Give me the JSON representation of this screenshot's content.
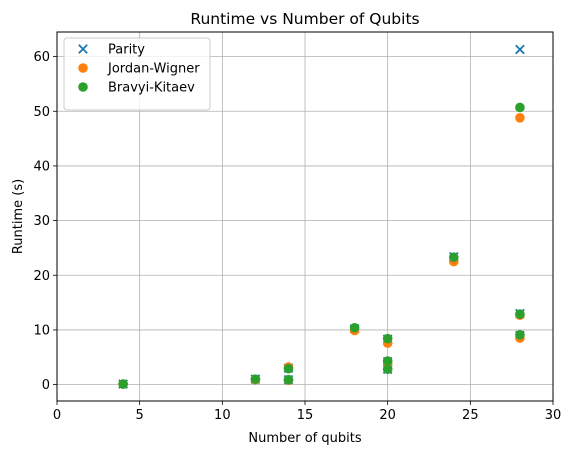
{
  "chart_data": {
    "type": "scatter",
    "title": "Runtime vs Number of Qubits",
    "xlabel": "Number of qubits",
    "ylabel": "Runtime (s)",
    "xlim": [
      0,
      30
    ],
    "ylim": [
      -3,
      64.5
    ],
    "xticks": [
      0,
      5,
      10,
      15,
      20,
      25,
      30
    ],
    "yticks": [
      0,
      10,
      20,
      30,
      40,
      50,
      60
    ],
    "grid": true,
    "legend_position": "top-left",
    "series": [
      {
        "name": "Parity",
        "marker": "x",
        "color": "#1f77b4",
        "x": [
          4,
          12,
          14,
          14,
          18,
          20,
          20,
          20,
          24,
          28,
          28,
          28
        ],
        "y": [
          0.1,
          1.0,
          0.9,
          3.0,
          10.2,
          8.3,
          4.2,
          2.8,
          23.4,
          61.3,
          13.0,
          9.0
        ]
      },
      {
        "name": "Jordan-Wigner",
        "marker": "o",
        "color": "#ff7f0e",
        "x": [
          4,
          12,
          14,
          14,
          18,
          20,
          20,
          20,
          24,
          28,
          28,
          28
        ],
        "y": [
          0.1,
          0.9,
          0.8,
          3.2,
          9.9,
          7.6,
          3.9,
          2.9,
          22.5,
          48.8,
          12.7,
          8.5
        ]
      },
      {
        "name": "Bravyi-Kitaev",
        "marker": "o",
        "color": "#2ca02c",
        "x": [
          4,
          12,
          14,
          14,
          18,
          20,
          20,
          20,
          24,
          28,
          28,
          28
        ],
        "y": [
          0.1,
          1.0,
          0.9,
          2.9,
          10.4,
          8.4,
          4.3,
          2.8,
          23.3,
          50.7,
          12.9,
          9.1
        ]
      }
    ]
  }
}
